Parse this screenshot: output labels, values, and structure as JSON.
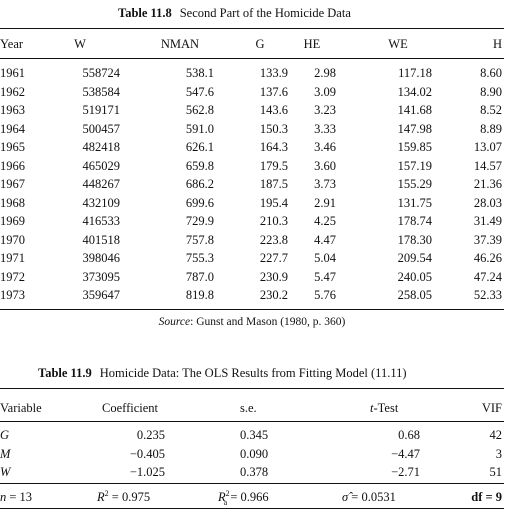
{
  "table_11_8": {
    "caption_label": "Table 11.8",
    "caption_title": "Second Part of the Homicide Data",
    "headers": [
      "Year",
      "W",
      "NMAN",
      "G",
      "HE",
      "WE",
      "H"
    ],
    "rows": [
      [
        "1961",
        "558724",
        "538.1",
        "133.9",
        "2.98",
        "117.18",
        "8.60"
      ],
      [
        "1962",
        "538584",
        "547.6",
        "137.6",
        "3.09",
        "134.02",
        "8.90"
      ],
      [
        "1963",
        "519171",
        "562.8",
        "143.6",
        "3.23",
        "141.68",
        "8.52"
      ],
      [
        "1964",
        "500457",
        "591.0",
        "150.3",
        "3.33",
        "147.98",
        "8.89"
      ],
      [
        "1965",
        "482418",
        "626.1",
        "164.3",
        "3.46",
        "159.85",
        "13.07"
      ],
      [
        "1966",
        "465029",
        "659.8",
        "179.5",
        "3.60",
        "157.19",
        "14.57"
      ],
      [
        "1967",
        "448267",
        "686.2",
        "187.5",
        "3.73",
        "155.29",
        "21.36"
      ],
      [
        "1968",
        "432109",
        "699.6",
        "195.4",
        "2.91",
        "131.75",
        "28.03"
      ],
      [
        "1969",
        "416533",
        "729.9",
        "210.3",
        "4.25",
        "178.74",
        "31.49"
      ],
      [
        "1970",
        "401518",
        "757.8",
        "223.8",
        "4.47",
        "178.30",
        "37.39"
      ],
      [
        "1971",
        "398046",
        "755.3",
        "227.7",
        "5.04",
        "209.54",
        "46.26"
      ],
      [
        "1972",
        "373095",
        "787.0",
        "230.9",
        "5.47",
        "240.05",
        "47.24"
      ],
      [
        "1973",
        "359647",
        "819.8",
        "230.2",
        "5.76",
        "258.05",
        "52.33"
      ]
    ],
    "source_label": "Source",
    "source_text": ": Gunst and Mason (1980, p. 360)"
  },
  "table_11_9": {
    "caption_label": "Table 11.9",
    "caption_title": "Homicide Data: The OLS Results from Fitting Model (11.11)",
    "headers": {
      "variable": "Variable",
      "coefficient": "Coefficient",
      "se": "s.e.",
      "ttest_italic": "t",
      "ttest_rest": "-Test",
      "vif": "VIF"
    },
    "rows": [
      {
        "variable": "G",
        "coefficient": "0.235",
        "se": "0.345",
        "ttest": "0.68",
        "vif": "42"
      },
      {
        "variable": "M",
        "coefficient": "−0.405",
        "se": "0.090",
        "ttest": "−4.47",
        "vif": "3"
      },
      {
        "variable": "W",
        "coefficient": "−1.025",
        "se": "0.378",
        "ttest": "−2.71",
        "vif": "51"
      }
    ],
    "footer": {
      "n_var": "n",
      "n_eq": " = 13",
      "r2_var": "R",
      "r2_sup": "2",
      "r2_eq": " = 0.975",
      "ra2_var": "R",
      "ra2_sup": "2",
      "ra2_sub": "a",
      "ra2_eq": " = 0.966",
      "sigma_var": "σ̂",
      "sigma_eq": " = 0.0531",
      "df": "df = 9"
    }
  }
}
